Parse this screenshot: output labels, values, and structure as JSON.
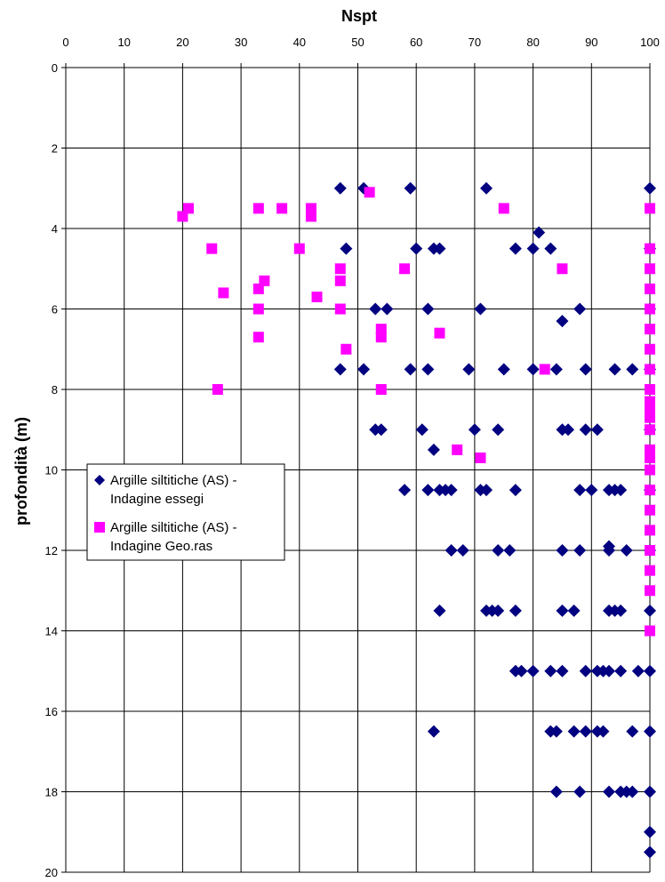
{
  "chart_data": {
    "type": "scatter",
    "title": "",
    "xlabel": "Nspt",
    "ylabel": "profondità (m)",
    "xlim": [
      0,
      100
    ],
    "ylim": [
      0,
      20
    ],
    "x_axis_position": "top",
    "y_inverted": true,
    "x_ticks": [
      0,
      10,
      20,
      30,
      40,
      50,
      60,
      70,
      80,
      90,
      100
    ],
    "y_ticks": [
      0,
      2,
      4,
      6,
      8,
      10,
      12,
      14,
      16,
      18,
      20
    ],
    "grid": true,
    "legend_position": "left",
    "series": [
      {
        "name": "Argille siltitiche (AS) - Indagine essegi",
        "name_lines": [
          "Argille siltitiche (AS) -",
          "Indagine essegi"
        ],
        "marker": "diamond",
        "color": "#000080",
        "points": [
          [
            47,
            3
          ],
          [
            51,
            3
          ],
          [
            59,
            3
          ],
          [
            72,
            3
          ],
          [
            100,
            3
          ],
          [
            81,
            4.1
          ],
          [
            48,
            4.5
          ],
          [
            60,
            4.5
          ],
          [
            63,
            4.5
          ],
          [
            64,
            4.5
          ],
          [
            77,
            4.5
          ],
          [
            80,
            4.5
          ],
          [
            83,
            4.5
          ],
          [
            100,
            4.5
          ],
          [
            53,
            6
          ],
          [
            55,
            6
          ],
          [
            62,
            6
          ],
          [
            71,
            6
          ],
          [
            88,
            6
          ],
          [
            100,
            6
          ],
          [
            85,
            6.3
          ],
          [
            47,
            7.5
          ],
          [
            51,
            7.5
          ],
          [
            59,
            7.5
          ],
          [
            62,
            7.5
          ],
          [
            69,
            7.5
          ],
          [
            75,
            7.5
          ],
          [
            80,
            7.5
          ],
          [
            84,
            7.5
          ],
          [
            89,
            7.5
          ],
          [
            94,
            7.5
          ],
          [
            97,
            7.5
          ],
          [
            100,
            7.5
          ],
          [
            53,
            9
          ],
          [
            54,
            9
          ],
          [
            61,
            9
          ],
          [
            70,
            9
          ],
          [
            74,
            9
          ],
          [
            85,
            9
          ],
          [
            86,
            9
          ],
          [
            89,
            9
          ],
          [
            91,
            9
          ],
          [
            100,
            9
          ],
          [
            63,
            9.5
          ],
          [
            58,
            10.5
          ],
          [
            62,
            10.5
          ],
          [
            64,
            10.5
          ],
          [
            65,
            10.5
          ],
          [
            66,
            10.5
          ],
          [
            71,
            10.5
          ],
          [
            72,
            10.5
          ],
          [
            77,
            10.5
          ],
          [
            88,
            10.5
          ],
          [
            90,
            10.5
          ],
          [
            93,
            10.5
          ],
          [
            94,
            10.5
          ],
          [
            95,
            10.5
          ],
          [
            100,
            10.5
          ],
          [
            66,
            12
          ],
          [
            68,
            12
          ],
          [
            74,
            12
          ],
          [
            76,
            12
          ],
          [
            85,
            12
          ],
          [
            88,
            12
          ],
          [
            93,
            11.9
          ],
          [
            93,
            12
          ],
          [
            96,
            12
          ],
          [
            100,
            12
          ],
          [
            64,
            13.5
          ],
          [
            72,
            13.5
          ],
          [
            73,
            13.5
          ],
          [
            74,
            13.5
          ],
          [
            77,
            13.5
          ],
          [
            85,
            13.5
          ],
          [
            87,
            13.5
          ],
          [
            93,
            13.5
          ],
          [
            94,
            13.5
          ],
          [
            95,
            13.5
          ],
          [
            100,
            13.5
          ],
          [
            77,
            15
          ],
          [
            78,
            15
          ],
          [
            80,
            15
          ],
          [
            83,
            15
          ],
          [
            85,
            15
          ],
          [
            89,
            15
          ],
          [
            91,
            15
          ],
          [
            92,
            15
          ],
          [
            93,
            15
          ],
          [
            95,
            15
          ],
          [
            98,
            15
          ],
          [
            100,
            15
          ],
          [
            63,
            16.5
          ],
          [
            83,
            16.5
          ],
          [
            84,
            16.5
          ],
          [
            87,
            16.5
          ],
          [
            89,
            16.5
          ],
          [
            91,
            16.5
          ],
          [
            92,
            16.5
          ],
          [
            97,
            16.5
          ],
          [
            100,
            16.5
          ],
          [
            84,
            18
          ],
          [
            88,
            18
          ],
          [
            93,
            18
          ],
          [
            95,
            18
          ],
          [
            96,
            18
          ],
          [
            97,
            18
          ],
          [
            100,
            18
          ],
          [
            100,
            19
          ],
          [
            100,
            19.5
          ]
        ]
      },
      {
        "name": "Argille siltitiche (AS) - Indagine Geo.ras",
        "name_lines": [
          "Argille siltitiche (AS) -",
          "Indagine Geo.ras"
        ],
        "marker": "square",
        "color": "#ff00ff",
        "points": [
          [
            52,
            3.1
          ],
          [
            20,
            3.7
          ],
          [
            21,
            3.5
          ],
          [
            33,
            3.5
          ],
          [
            37,
            3.5
          ],
          [
            42,
            3.5
          ],
          [
            42,
            3.7
          ],
          [
            75,
            3.5
          ],
          [
            100,
            3.5
          ],
          [
            25,
            4.5
          ],
          [
            40,
            4.5
          ],
          [
            100,
            4.5
          ],
          [
            47,
            5
          ],
          [
            58,
            5
          ],
          [
            85,
            5
          ],
          [
            100,
            5
          ],
          [
            47,
            5.3
          ],
          [
            34,
            5.3
          ],
          [
            27,
            5.6
          ],
          [
            33,
            5.5
          ],
          [
            43,
            5.7
          ],
          [
            100,
            5.5
          ],
          [
            33,
            6
          ],
          [
            47,
            6
          ],
          [
            100,
            6
          ],
          [
            54,
            6.5
          ],
          [
            54,
            6.7
          ],
          [
            64,
            6.6
          ],
          [
            33,
            6.7
          ],
          [
            100,
            6.5
          ],
          [
            48,
            7
          ],
          [
            100,
            7
          ],
          [
            82,
            7.5
          ],
          [
            100,
            7.5
          ],
          [
            26,
            8
          ],
          [
            54,
            8
          ],
          [
            100,
            8
          ],
          [
            100,
            8.3
          ],
          [
            100,
            8.5
          ],
          [
            100,
            8.7
          ],
          [
            100,
            9
          ],
          [
            100,
            9.5
          ],
          [
            100,
            9.7
          ],
          [
            67,
            9.5
          ],
          [
            71,
            9.7
          ],
          [
            100,
            10
          ],
          [
            100,
            10.5
          ],
          [
            100,
            11
          ],
          [
            100,
            11.5
          ],
          [
            100,
            12
          ],
          [
            100,
            12.5
          ],
          [
            100,
            13
          ],
          [
            100,
            14
          ]
        ]
      }
    ]
  }
}
